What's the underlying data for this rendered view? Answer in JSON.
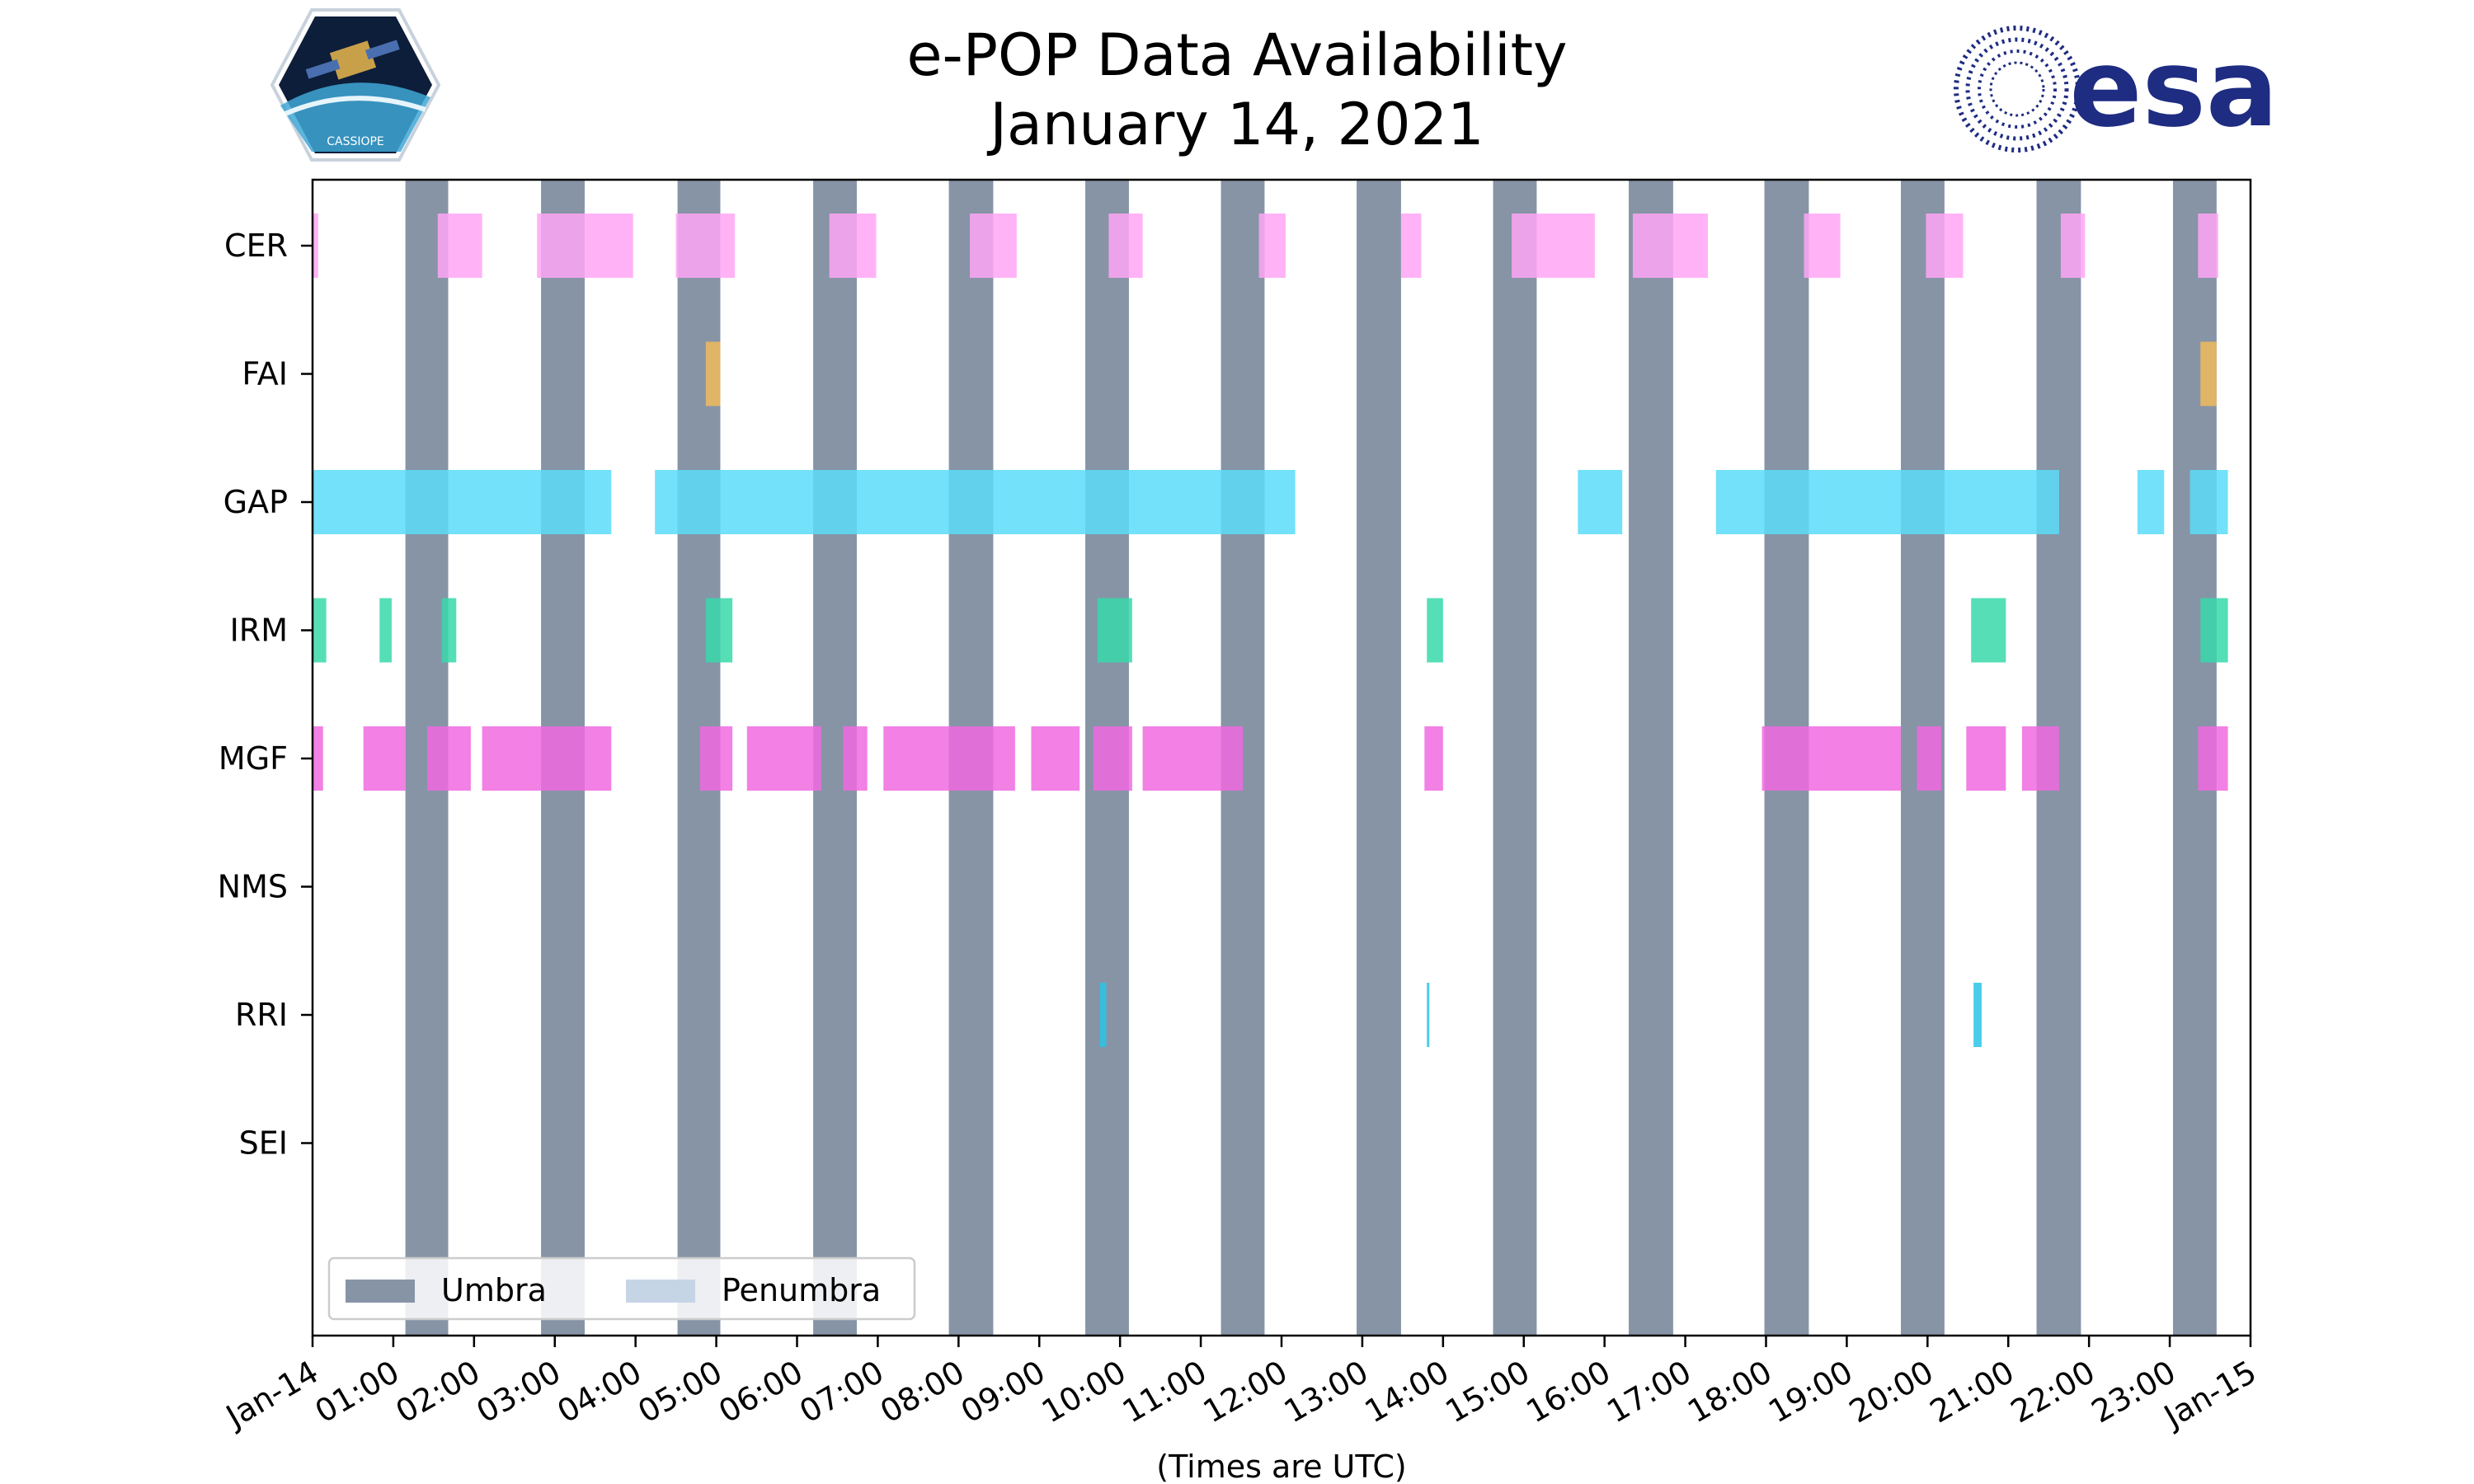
{
  "header": {
    "title_line1": "e-POP Data Availability",
    "title_line2": "January 14, 2021",
    "left_logo_text": "CASSIOPE",
    "right_logo_text": "esa"
  },
  "colors": {
    "umbra": "#8694a6",
    "penumbra": "#c6d5e6",
    "CER": "#ffa6f5",
    "FAI": "#f0bb5c",
    "GAP": "#5adcf8",
    "IRM": "#38d8aa",
    "MGF": "#f06ae0",
    "RRI": "#29c4e6",
    "esa_blue": "#1e2c82"
  },
  "chart_data": {
    "type": "timeline",
    "title": "e-POP Data Availability\nJanuary 14, 2021",
    "xlabel": "(Times are UTC)",
    "ylabel": "",
    "xlim_hours": [
      0,
      24
    ],
    "x_tick_labels": [
      "Jan-14",
      "01:00",
      "02:00",
      "03:00",
      "04:00",
      "05:00",
      "06:00",
      "07:00",
      "08:00",
      "09:00",
      "10:00",
      "11:00",
      "12:00",
      "13:00",
      "14:00",
      "15:00",
      "16:00",
      "17:00",
      "18:00",
      "19:00",
      "20:00",
      "21:00",
      "22:00",
      "23:00",
      "Jan-15"
    ],
    "instruments": [
      "CER",
      "FAI",
      "GAP",
      "IRM",
      "MGF",
      "NMS",
      "RRI",
      "SEI"
    ],
    "legend": {
      "position": "lower-left",
      "entries": [
        "Umbra",
        "Penumbra"
      ]
    },
    "umbra": [
      [
        1.15,
        1.68
      ],
      [
        2.83,
        3.37
      ],
      [
        4.52,
        5.05
      ],
      [
        6.2,
        6.74
      ],
      [
        7.88,
        8.43
      ],
      [
        9.57,
        10.11
      ],
      [
        11.25,
        11.79
      ],
      [
        12.93,
        13.48
      ],
      [
        14.62,
        15.16
      ],
      [
        16.3,
        16.85
      ],
      [
        17.98,
        18.53
      ],
      [
        19.67,
        20.21
      ],
      [
        21.35,
        21.9
      ],
      [
        23.04,
        23.58
      ]
    ],
    "series": [
      {
        "name": "CER",
        "intervals": [
          [
            0,
            0.07
          ],
          [
            1.55,
            2.1
          ],
          [
            2.78,
            3.97
          ],
          [
            4.5,
            5.23
          ],
          [
            6.4,
            6.98
          ],
          [
            8.14,
            8.72
          ],
          [
            9.86,
            10.28
          ],
          [
            11.72,
            12.05
          ],
          [
            13.48,
            13.73
          ],
          [
            14.85,
            15.88
          ],
          [
            16.35,
            17.28
          ],
          [
            18.47,
            18.92
          ],
          [
            19.98,
            20.44
          ],
          [
            21.65,
            21.95
          ],
          [
            23.35,
            23.6
          ]
        ]
      },
      {
        "name": "FAI",
        "intervals": [
          [
            4.87,
            5.05
          ],
          [
            23.38,
            23.58
          ]
        ]
      },
      {
        "name": "GAP",
        "intervals": [
          [
            0,
            3.7
          ],
          [
            4.24,
            12.17
          ],
          [
            15.67,
            16.22
          ],
          [
            17.38,
            21.63
          ],
          [
            22.6,
            22.93
          ],
          [
            23.25,
            23.72
          ]
        ]
      },
      {
        "name": "IRM",
        "intervals": [
          [
            0,
            0.17
          ],
          [
            0.83,
            0.98
          ],
          [
            1.6,
            1.78
          ],
          [
            4.87,
            5.2
          ],
          [
            9.72,
            10.15
          ],
          [
            13.8,
            14.0
          ],
          [
            20.54,
            20.97
          ],
          [
            23.38,
            23.72
          ]
        ]
      },
      {
        "name": "MGF",
        "intervals": [
          [
            0,
            0.13
          ],
          [
            0.63,
            1.15
          ],
          [
            1.42,
            1.96
          ],
          [
            2.1,
            3.7
          ],
          [
            4.8,
            5.2
          ],
          [
            5.38,
            6.3
          ],
          [
            6.57,
            6.87
          ],
          [
            7.07,
            8.7
          ],
          [
            8.9,
            9.5
          ],
          [
            9.67,
            10.15
          ],
          [
            10.28,
            11.52
          ],
          [
            13.77,
            14.0
          ],
          [
            17.95,
            19.67
          ],
          [
            19.87,
            20.17
          ],
          [
            20.48,
            20.97
          ],
          [
            21.17,
            21.63
          ],
          [
            23.35,
            23.72
          ]
        ]
      },
      {
        "name": "NMS",
        "intervals": []
      },
      {
        "name": "RRI",
        "intervals": [
          [
            9.75,
            9.83
          ],
          [
            13.8,
            13.83
          ],
          [
            20.57,
            20.67
          ]
        ]
      },
      {
        "name": "SEI",
        "intervals": []
      }
    ]
  }
}
